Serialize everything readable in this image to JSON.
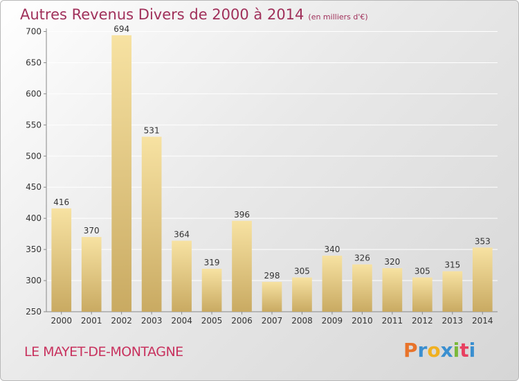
{
  "header": {
    "title": "Autres Revenus Divers de 2000 à 2014",
    "unit": "(en milliers d'€)"
  },
  "footer": {
    "commune": "LE MAYET-DE-MONTAGNE",
    "logo": {
      "letters": [
        "P",
        "r",
        "o",
        "x",
        "i",
        "t",
        "i"
      ],
      "colors": [
        "#e8732a",
        "#3a8fd0",
        "#f0b020",
        "#3a8fd0",
        "#7ab83a",
        "#e84060",
        "#3a8fd0"
      ]
    }
  },
  "chart_data": {
    "type": "bar",
    "categories": [
      "2000",
      "2001",
      "2002",
      "2003",
      "2004",
      "2005",
      "2006",
      "2007",
      "2008",
      "2009",
      "2010",
      "2011",
      "2012",
      "2013",
      "2014"
    ],
    "values": [
      416,
      370,
      694,
      531,
      364,
      319,
      396,
      298,
      305,
      340,
      326,
      320,
      305,
      315,
      353
    ],
    "data_labels": [
      "416",
      "370",
      "694",
      "531",
      "364",
      "319",
      "396",
      "298",
      "305",
      "340",
      "326",
      "320",
      "305",
      "315",
      "353"
    ],
    "yticks": [
      250,
      300,
      350,
      400,
      450,
      500,
      550,
      600,
      650,
      700
    ],
    "ytick_labels": [
      "250",
      "300",
      "350",
      "400",
      "450",
      "500",
      "550",
      "600",
      "650",
      "700"
    ],
    "ylim": [
      250,
      705
    ],
    "grid": true,
    "bar_color_light": "#f7e2a2",
    "bar_color_dark": "#c9aa62"
  }
}
